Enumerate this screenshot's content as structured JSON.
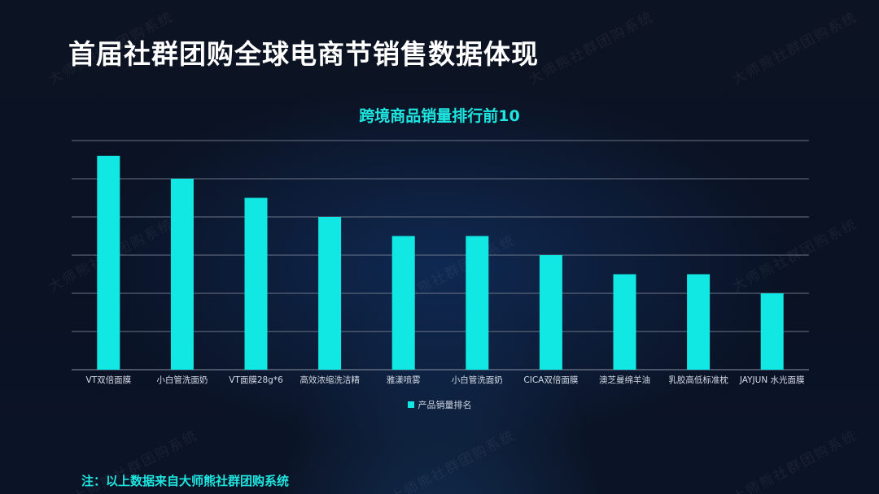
{
  "header": {
    "title": "首届社群团购全球电商节销售数据体现"
  },
  "watermark": {
    "text": "大师熊社群团购系统"
  },
  "footnote": {
    "text": "注：以上数据来自大师熊社群团购系统"
  },
  "colors": {
    "background": "#0b1120",
    "bar": "#11e8e3",
    "accent_text": "#1ee6e0",
    "gridline": "#6b7385"
  },
  "chart_data": {
    "type": "bar",
    "title": "跨境商品销量排行前10",
    "categories": [
      "VT双倍面膜",
      "小白管洗面奶",
      "VT面膜28g*6",
      "高效浓缩洗洁精",
      "雅漾喷雾",
      "小白管洗面奶",
      "CICA双倍面膜",
      "澳芝曼绵羊油",
      "乳胶高低标准枕",
      "JAYJUN 水光面膜"
    ],
    "series": [
      {
        "name": "产品销量排名",
        "values": [
          5.6,
          5.0,
          4.5,
          4.0,
          3.5,
          3.5,
          3.0,
          2.5,
          2.5,
          2.0
        ]
      }
    ],
    "ylim": [
      0,
      6
    ],
    "grid": true,
    "y_tick_labels_shown": false,
    "legend_position": "bottom"
  }
}
